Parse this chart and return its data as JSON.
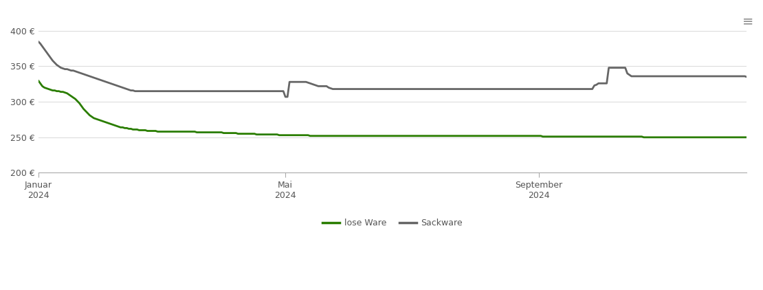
{
  "ylim": [
    200,
    410
  ],
  "yticks": [
    200,
    250,
    300,
    350,
    400
  ],
  "ytick_labels": [
    "200 €",
    "250 €",
    "300 €",
    "350 €",
    "400 €"
  ],
  "background_color": "#ffffff",
  "grid_color": "#dddddd",
  "x_tick_positions": [
    0,
    120,
    243
  ],
  "x_tick_labels": [
    "Januar\n2024",
    "Mai\n2024",
    "September\n2024"
  ],
  "lose_ware_color": "#2a7d00",
  "sackware_color": "#666666",
  "line_width": 2.0,
  "legend_labels": [
    "lose Ware",
    "Sackware"
  ],
  "lose_ware": [
    330,
    326,
    322,
    320,
    319,
    318,
    317,
    316,
    316,
    315,
    315,
    314,
    314,
    313,
    312,
    310,
    308,
    306,
    304,
    301,
    298,
    294,
    290,
    287,
    284,
    281,
    279,
    277,
    276,
    275,
    274,
    273,
    272,
    271,
    270,
    269,
    268,
    267,
    266,
    265,
    264,
    264,
    263,
    263,
    262,
    262,
    261,
    261,
    261,
    260,
    260,
    260,
    260,
    259,
    259,
    259,
    259,
    259,
    258,
    258,
    258,
    258,
    258,
    258,
    258,
    258,
    258,
    258,
    258,
    258,
    258,
    258,
    258,
    258,
    258,
    258,
    258,
    257,
    257,
    257,
    257,
    257,
    257,
    257,
    257,
    257,
    257,
    257,
    257,
    257,
    256,
    256,
    256,
    256,
    256,
    256,
    256,
    255,
    255,
    255,
    255,
    255,
    255,
    255,
    255,
    255,
    254,
    254,
    254,
    254,
    254,
    254,
    254,
    254,
    254,
    254,
    254,
    253,
    253,
    253,
    253,
    253,
    253,
    253,
    253,
    253,
    253,
    253,
    253,
    253,
    253,
    253,
    252,
    252,
    252,
    252,
    252,
    252,
    252,
    252,
    252,
    252,
    252,
    252,
    252,
    252,
    252,
    252,
    252,
    252,
    252,
    252,
    252,
    252,
    252,
    252,
    252,
    252,
    252,
    252,
    252,
    252,
    252,
    252,
    252,
    252,
    252,
    252,
    252,
    252,
    252,
    252,
    252,
    252,
    252,
    252,
    252,
    252,
    252,
    252,
    252,
    252,
    252,
    252,
    252,
    252,
    252,
    252,
    252,
    252,
    252,
    252,
    252,
    252,
    252,
    252,
    252,
    252,
    252,
    252,
    252,
    252,
    252,
    252,
    252,
    252,
    252,
    252,
    252,
    252,
    252,
    252,
    252,
    252,
    252,
    252,
    252,
    252,
    252,
    252,
    252,
    252,
    252,
    252,
    252,
    252,
    252,
    252,
    252,
    252,
    252,
    252,
    252,
    252,
    252,
    252,
    252,
    252,
    252,
    252,
    252,
    252,
    252,
    252,
    252,
    251,
    251,
    251,
    251,
    251,
    251,
    251,
    251,
    251,
    251,
    251,
    251,
    251,
    251,
    251,
    251,
    251,
    251,
    251,
    251,
    251,
    251,
    251,
    251,
    251,
    251,
    251,
    251,
    251,
    251,
    251,
    251,
    251,
    251,
    251,
    251,
    251,
    251,
    251,
    251,
    251,
    251,
    251,
    251,
    251,
    251,
    251,
    251,
    251,
    250,
    250,
    250,
    250,
    250,
    250,
    250,
    250,
    250,
    250,
    250,
    250,
    250,
    250,
    250,
    250,
    250,
    250,
    250,
    250,
    250,
    250,
    250,
    250,
    250,
    250,
    250,
    250,
    250,
    250,
    250,
    250,
    250,
    250,
    250,
    250,
    250,
    250,
    250,
    250,
    250,
    250,
    250,
    250,
    250,
    250,
    250,
    250,
    250,
    250,
    250,
    250,
    250,
    250,
    252
  ],
  "sackware": [
    385,
    382,
    378,
    374,
    370,
    366,
    362,
    358,
    355,
    352,
    350,
    348,
    347,
    346,
    346,
    345,
    344,
    344,
    343,
    342,
    341,
    340,
    339,
    338,
    337,
    336,
    335,
    334,
    333,
    332,
    331,
    330,
    329,
    328,
    327,
    326,
    325,
    324,
    323,
    322,
    321,
    320,
    319,
    318,
    317,
    316,
    316,
    315,
    315,
    315,
    315,
    315,
    315,
    315,
    315,
    315,
    315,
    315,
    315,
    315,
    315,
    315,
    315,
    315,
    315,
    315,
    315,
    315,
    315,
    315,
    315,
    315,
    315,
    315,
    315,
    315,
    315,
    315,
    315,
    315,
    315,
    315,
    315,
    315,
    315,
    315,
    315,
    315,
    315,
    315,
    315,
    315,
    315,
    315,
    315,
    315,
    315,
    315,
    315,
    315,
    315,
    315,
    315,
    315,
    315,
    315,
    315,
    315,
    315,
    315,
    315,
    315,
    315,
    315,
    315,
    315,
    315,
    315,
    315,
    315,
    307,
    307,
    328,
    328,
    328,
    328,
    328,
    328,
    328,
    328,
    328,
    327,
    326,
    325,
    324,
    323,
    322,
    322,
    322,
    322,
    322,
    320,
    319,
    318,
    318,
    318,
    318,
    318,
    318,
    318,
    318,
    318,
    318,
    318,
    318,
    318,
    318,
    318,
    318,
    318,
    318,
    318,
    318,
    318,
    318,
    318,
    318,
    318,
    318,
    318,
    318,
    318,
    318,
    318,
    318,
    318,
    318,
    318,
    318,
    318,
    318,
    318,
    318,
    318,
    318,
    318,
    318,
    318,
    318,
    318,
    318,
    318,
    318,
    318,
    318,
    318,
    318,
    318,
    318,
    318,
    318,
    318,
    318,
    318,
    318,
    318,
    318,
    318,
    318,
    318,
    318,
    318,
    318,
    318,
    318,
    318,
    318,
    318,
    318,
    318,
    318,
    318,
    318,
    318,
    318,
    318,
    318,
    318,
    318,
    318,
    318,
    318,
    318,
    318,
    318,
    318,
    318,
    318,
    318,
    318,
    318,
    318,
    318,
    318,
    318,
    318,
    318,
    318,
    318,
    318,
    318,
    318,
    318,
    318,
    318,
    318,
    318,
    318,
    318,
    318,
    318,
    318,
    318,
    318,
    318,
    318,
    318,
    318,
    318,
    318,
    323,
    324,
    326,
    326,
    326,
    326,
    326,
    348,
    348,
    348,
    348,
    348,
    348,
    348,
    348,
    348,
    340,
    338,
    336,
    336,
    336,
    336,
    336,
    336,
    336,
    336,
    336,
    336,
    336,
    336,
    336,
    336,
    336,
    336,
    336,
    336,
    336,
    336,
    336,
    336,
    336,
    336,
    336,
    336,
    336,
    336,
    336,
    336,
    336,
    336,
    336,
    336,
    336,
    336,
    336,
    336,
    336,
    336,
    336,
    336,
    336,
    336,
    336,
    336,
    336,
    336,
    336,
    336,
    336,
    336,
    336,
    336,
    336,
    336,
    335
  ]
}
